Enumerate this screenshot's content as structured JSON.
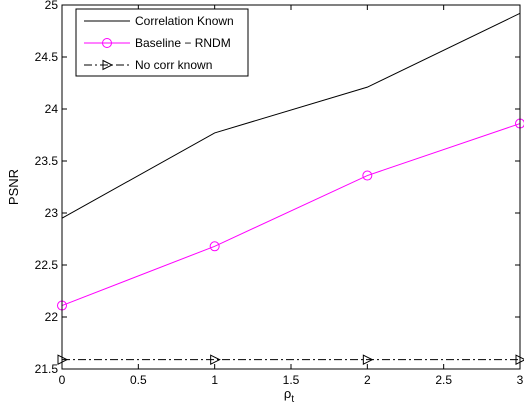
{
  "chart_data": {
    "type": "line",
    "xlabel": "ρ",
    "xlabel_sub": "t",
    "ylabel": "PSNR",
    "xlim": [
      0,
      3
    ],
    "ylim": [
      21.5,
      25
    ],
    "x_ticks": [
      0,
      0.5,
      1,
      1.5,
      2,
      2.5,
      3
    ],
    "x_tick_labels": [
      "0",
      "0.5",
      "1",
      "1.5",
      "2",
      "2.5",
      "3"
    ],
    "y_ticks": [
      21.5,
      22,
      22.5,
      23,
      23.5,
      24,
      24.5,
      25
    ],
    "y_tick_labels": [
      "21.5",
      "22",
      "22.5",
      "23",
      "23.5",
      "24",
      "24.5",
      "25"
    ],
    "grid": false,
    "legend_position": "top-left",
    "series": [
      {
        "name": "Correlation Known",
        "color": "#000000",
        "line_style": "solid",
        "marker": "none",
        "x": [
          0,
          1,
          2,
          3
        ],
        "y": [
          22.95,
          23.77,
          24.21,
          24.92
        ]
      },
      {
        "name": "Baseline − RNDM",
        "color": "#ff00ff",
        "line_style": "solid",
        "marker": "circle",
        "x": [
          0,
          1,
          2,
          3
        ],
        "y": [
          22.11,
          22.68,
          23.36,
          23.86
        ]
      },
      {
        "name": "No corr known",
        "color": "#000000",
        "line_style": "dash-dot",
        "marker": "triangle-right",
        "x": [
          0,
          1,
          2,
          3
        ],
        "y": [
          21.59,
          21.59,
          21.59,
          21.59
        ]
      }
    ]
  }
}
